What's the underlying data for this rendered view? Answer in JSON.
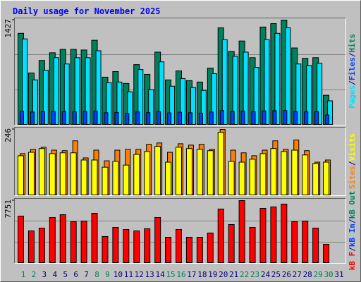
{
  "chart_data": {
    "type": "bar",
    "title": "Daily usage for November 2025",
    "legend_separator": "/",
    "categories": [
      "1",
      "2",
      "3",
      "4",
      "5",
      "6",
      "7",
      "8",
      "9",
      "10",
      "11",
      "12",
      "13",
      "14",
      "15",
      "16",
      "17",
      "18",
      "19",
      "20",
      "21",
      "22",
      "23",
      "24",
      "25",
      "26",
      "27",
      "28",
      "29",
      "30",
      "31"
    ],
    "category_colors": [
      "#00805c",
      "#00805c",
      "#000080",
      "#000080",
      "#000080",
      "#000080",
      "#000080",
      "#00805c",
      "#00805c",
      "#000080",
      "#000080",
      "#000080",
      "#000080",
      "#000080",
      "#00805c",
      "#00805c",
      "#000080",
      "#000080",
      "#000080",
      "#000080",
      "#000080",
      "#00805c",
      "#00805c",
      "#000080",
      "#000080",
      "#000080",
      "#000080",
      "#000080",
      "#00805c",
      "#00805c",
      "#000080"
    ],
    "panels": [
      {
        "ylim": [
          0,
          1427
        ],
        "yticks": [
          1427
        ],
        "grid": true,
        "series": [
          {
            "name": "Hits",
            "color": "#00805c",
            "values": [
              1246,
              704,
              875,
              980,
              1027,
              1027,
              1018,
              1151,
              647,
              723,
              561,
              818,
              685,
              989,
              609,
              732,
              599,
              580,
              770,
              1322,
              999,
              1141,
              913,
              1332,
              1379,
              1427,
              1046,
              904,
              913,
              399,
              null
            ]
          },
          {
            "name": "Files",
            "color": "#0040ff",
            "values": [
              180,
              170,
              175,
              178,
              176,
              172,
              178,
              182,
              160,
              165,
              150,
              172,
              162,
              176,
              158,
              168,
              160,
              155,
              170,
              190,
              178,
              182,
              174,
              185,
              188,
              190,
              176,
              172,
              174,
              130,
              null
            ]
          },
          {
            "name": "Pages",
            "color": "#00e0ff",
            "values": [
              1170,
              609,
              742,
              913,
              827,
              913,
              913,
              1008,
              571,
              580,
              447,
              751,
              476,
              856,
              523,
              628,
              504,
              466,
              694,
              1160,
              932,
              989,
              780,
              1160,
              1246,
              1322,
              827,
              808,
              837,
              323,
              null
            ]
          }
        ]
      },
      {
        "ylim": [
          0,
          246
        ],
        "yticks": [
          246
        ],
        "grid": false,
        "series": [
          {
            "name": "Visits",
            "color": "#ffff00",
            "values": [
              147,
              160,
              174,
              155,
              158,
              158,
              131,
              131,
              104,
              126,
              112,
              152,
              163,
              182,
              123,
              179,
              174,
              171,
              166,
              235,
              126,
              123,
              134,
              155,
              174,
              163,
              168,
              150,
              118,
              123,
              null
            ]
          },
          {
            "name": "Sites",
            "color": "#ff8000",
            "values": [
              155,
              171,
              179,
              168,
              166,
              203,
              139,
              168,
              128,
              168,
              171,
              171,
              190,
              195,
              160,
              192,
              187,
              190,
              171,
              246,
              168,
              158,
              147,
              168,
              203,
              171,
              206,
              166,
              123,
              131,
              null
            ]
          }
        ]
      },
      {
        "ylim": [
          0,
          7751
        ],
        "yticks": [
          7751
        ],
        "grid": true,
        "series": [
          {
            "name": "kB Out",
            "color": "#00805c",
            "values": [
              null,
              null,
              null,
              null,
              null,
              null,
              null,
              null,
              null,
              null,
              null,
              null,
              null,
              null,
              null,
              null,
              null,
              null,
              null,
              null,
              null,
              null,
              null,
              null,
              null,
              null,
              null,
              null,
              null,
              null,
              null
            ]
          },
          {
            "name": "kB In",
            "color": "#0040ff",
            "values": [
              null,
              null,
              null,
              null,
              null,
              null,
              null,
              null,
              null,
              null,
              null,
              null,
              null,
              null,
              null,
              null,
              null,
              null,
              null,
              null,
              null,
              null,
              null,
              null,
              null,
              null,
              null,
              null,
              null,
              null,
              null
            ]
          },
          {
            "name": "kB F",
            "color": "#ff0000",
            "values": [
              5814,
              3964,
              4316,
              5638,
              5990,
              5110,
              5197,
              6166,
              3259,
              4404,
              4140,
              3964,
              4228,
              5638,
              3171,
              4140,
              3171,
              3171,
              3700,
              6695,
              4757,
              7751,
              4404,
              6783,
              6959,
              7311,
              5110,
              5197,
              4316,
              2290,
              null
            ]
          }
        ]
      }
    ]
  }
}
